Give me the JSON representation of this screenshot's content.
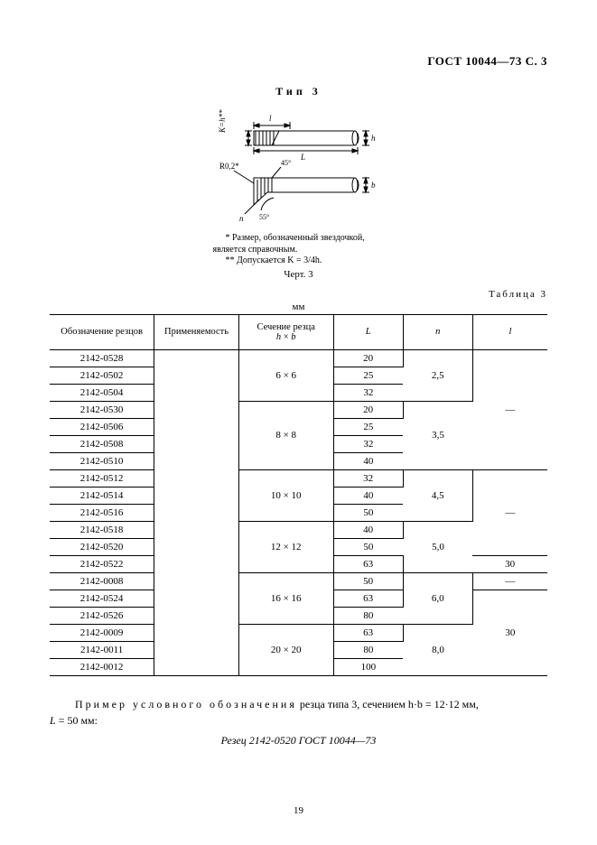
{
  "header": "ГОСТ 10044—73 С. 3",
  "type_label": "Тип 3",
  "figure": {
    "labels": {
      "K": "K=h**",
      "l_small": "l",
      "h": "h",
      "L": "L",
      "R": "R0,2*",
      "angle45": "45°",
      "angle55": "55°",
      "b": "b",
      "n": "n"
    },
    "line_color": "#000000",
    "hatch_color": "#000000",
    "bg": "#ffffff"
  },
  "footnote1_prefix": "* ",
  "footnote1_rest": "Размер, обозначенный звездочкой, является справочным.",
  "footnote2": "** Допускается K = 3/4h.",
  "chert": "Черт. 3",
  "table_caption": "Таблица 3",
  "unit": "мм",
  "columns": [
    "Обозначение резцов",
    "Применяемость",
    "Сечение резца h × b",
    "L",
    "n",
    "l"
  ],
  "col_widths": [
    "21%",
    "17%",
    "19%",
    "14%",
    "14%",
    "15%"
  ],
  "groups": [
    {
      "section": "6 × 6",
      "n": "2,5",
      "l": "—",
      "rows": [
        {
          "code": "2142-0528",
          "L": "20"
        },
        {
          "code": "2142-0502",
          "L": "25"
        },
        {
          "code": "2142-0504",
          "L": "32"
        }
      ]
    },
    {
      "section": "8 × 8",
      "n": "3,5",
      "l": "—",
      "l_span_with_prev": true,
      "rows": [
        {
          "code": "2142-0530",
          "L": "20"
        },
        {
          "code": "2142-0506",
          "L": "25"
        },
        {
          "code": "2142-0508",
          "L": "32"
        },
        {
          "code": "2142-0510",
          "L": "40"
        }
      ]
    },
    {
      "section": "10 × 10",
      "n": "4,5",
      "l": "—",
      "rows": [
        {
          "code": "2142-0512",
          "L": "32"
        },
        {
          "code": "2142-0514",
          "L": "40"
        },
        {
          "code": "2142-0516",
          "L": "50"
        }
      ]
    },
    {
      "section": "12 × 12",
      "n": "5,0",
      "rows": [
        {
          "code": "2142-0518",
          "L": "40",
          "l": "",
          "l_span_with_prev": true
        },
        {
          "code": "2142-0520",
          "L": "50"
        },
        {
          "code": "2142-0522",
          "L": "63",
          "l": "30"
        }
      ]
    },
    {
      "section": "16 × 16",
      "n": "6,0",
      "rows": [
        {
          "code": "2142-0008",
          "L": "50",
          "l": "—"
        },
        {
          "code": "2142-0524",
          "L": "63",
          "l": "30",
          "l_rowspan": 5
        },
        {
          "code": "2142-0526",
          "L": "80"
        }
      ]
    },
    {
      "section": "20 × 20",
      "n": "8,0",
      "rows": [
        {
          "code": "2142-0009",
          "L": "63"
        },
        {
          "code": "2142-0011",
          "L": "80"
        },
        {
          "code": "2142-0012",
          "L": "100"
        }
      ]
    }
  ],
  "example": {
    "spaced_prefix": "Пример условного обозначения",
    "rest": " резца типа 3, сечением  h·b = 12·12 мм,",
    "line2_prefix": "L",
    "line2_rest": " = 50 мм:",
    "designation": "Резец 2142-0520 ГОСТ 10044—73"
  },
  "page_number": "19"
}
